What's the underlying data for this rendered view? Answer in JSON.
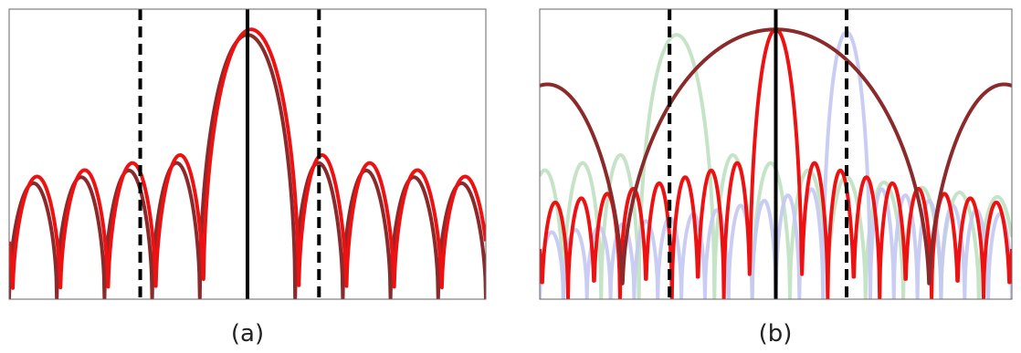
{
  "colors": {
    "frame": "#666666",
    "bright_red": "#ee1111",
    "dark_red": "#8b2a2a",
    "faint_green": "#bfe0c0",
    "faint_blue": "#c4c8f2",
    "marker": "#000000"
  },
  "chart_data": [
    {
      "type": "line",
      "caption": "(a)",
      "title": "",
      "xlabel": "",
      "ylabel": "",
      "xlim": [
        -1,
        1
      ],
      "ylim": [
        0,
        1
      ],
      "log_scale": "none",
      "grid": false,
      "ticks": false,
      "series": [
        {
          "style": "dark_red",
          "function": "sinc_lobes",
          "center": 0,
          "null_spacing": 0.2,
          "peak": 0.98,
          "sidelobe_peak": 0.52
        },
        {
          "style": "bright_red",
          "function": "sinc_lobes",
          "center": 0.015,
          "null_spacing": 0.2,
          "peak": 1.0,
          "sidelobe_peak": 0.55
        }
      ],
      "vertical_lines": [
        {
          "x": 0,
          "style": "solid"
        },
        {
          "x": -0.45,
          "style": "dashed"
        },
        {
          "x": 0.3,
          "style": "dashed"
        }
      ]
    },
    {
      "type": "line",
      "caption": "(b)",
      "title": "",
      "xlabel": "",
      "ylabel": "",
      "xlim": [
        -1,
        1
      ],
      "ylim": [
        0,
        1
      ],
      "log_scale": "none",
      "grid": false,
      "ticks": false,
      "series": [
        {
          "style": "faint_green",
          "function": "sinc_lobes",
          "center": -0.42,
          "null_spacing": 0.16,
          "peak": 0.98,
          "sidelobe_peak": 0.55
        },
        {
          "style": "faint_blue",
          "function": "sinc_lobes",
          "center": 0.3,
          "null_spacing": 0.1,
          "peak": 0.99,
          "sidelobe_peak": 0.42
        },
        {
          "style": "bright_red",
          "function": "sinc_lobes",
          "center": 0,
          "null_spacing": 0.11,
          "peak": 1.0,
          "sidelobe_peak": 0.52
        },
        {
          "style": "dark_red",
          "function": "sinc_lobes",
          "center": 0,
          "null_spacing": 0.65,
          "peak": 1.0,
          "sidelobe_peak": 0.82
        }
      ],
      "vertical_lines": [
        {
          "x": 0,
          "style": "solid"
        },
        {
          "x": -0.45,
          "style": "dashed"
        },
        {
          "x": 0.3,
          "style": "dashed"
        }
      ]
    }
  ]
}
